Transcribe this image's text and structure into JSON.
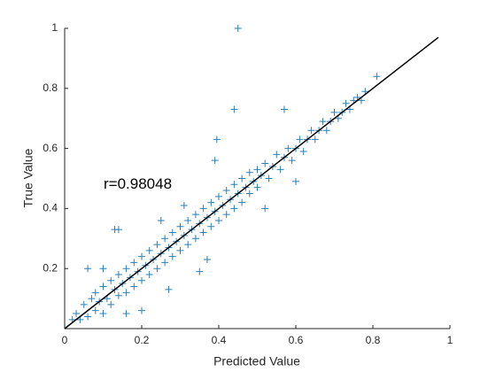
{
  "chart_data": {
    "type": "scatter",
    "xlabel": "Predicted Value",
    "ylabel": "True Value",
    "annotation": {
      "text": "r=0.98048",
      "x": 0.1,
      "y": 0.48
    },
    "xlim": [
      0,
      1
    ],
    "ylim": [
      0,
      1
    ],
    "xticks": [
      0,
      0.2,
      0.4,
      0.6,
      0.8,
      1
    ],
    "yticks": [
      0.2,
      0.4,
      0.6,
      0.8,
      1
    ],
    "series": [
      {
        "type": "scatter",
        "color": "#2a7fb8",
        "x": [
          0.02,
          0.03,
          0.04,
          0.05,
          0.06,
          0.07,
          0.08,
          0.08,
          0.09,
          0.1,
          0.1,
          0.11,
          0.12,
          0.12,
          0.13,
          0.14,
          0.14,
          0.15,
          0.16,
          0.16,
          0.17,
          0.18,
          0.18,
          0.19,
          0.2,
          0.2,
          0.21,
          0.22,
          0.22,
          0.23,
          0.24,
          0.24,
          0.25,
          0.26,
          0.26,
          0.27,
          0.28,
          0.28,
          0.29,
          0.3,
          0.3,
          0.31,
          0.32,
          0.32,
          0.33,
          0.34,
          0.34,
          0.35,
          0.36,
          0.36,
          0.37,
          0.38,
          0.38,
          0.39,
          0.4,
          0.4,
          0.41,
          0.42,
          0.42,
          0.43,
          0.44,
          0.44,
          0.45,
          0.46,
          0.46,
          0.47,
          0.48,
          0.48,
          0.49,
          0.5,
          0.5,
          0.51,
          0.52,
          0.53,
          0.54,
          0.55,
          0.56,
          0.57,
          0.58,
          0.59,
          0.6,
          0.61,
          0.62,
          0.63,
          0.64,
          0.65,
          0.66,
          0.67,
          0.68,
          0.69,
          0.7,
          0.71,
          0.72,
          0.73,
          0.74,
          0.75,
          0.76,
          0.77,
          0.78,
          0.45,
          0.44,
          0.395,
          0.39,
          0.13,
          0.14,
          0.06,
          0.1,
          0.57,
          0.81,
          0.35,
          0.37,
          0.2,
          0.16,
          0.6,
          0.52,
          0.27,
          0.31,
          0.25
        ],
        "values": [
          0.03,
          0.05,
          0.03,
          0.08,
          0.04,
          0.1,
          0.06,
          0.12,
          0.09,
          0.05,
          0.14,
          0.1,
          0.16,
          0.08,
          0.13,
          0.18,
          0.11,
          0.15,
          0.2,
          0.12,
          0.17,
          0.22,
          0.14,
          0.19,
          0.24,
          0.16,
          0.21,
          0.26,
          0.18,
          0.23,
          0.28,
          0.2,
          0.25,
          0.3,
          0.22,
          0.27,
          0.32,
          0.24,
          0.29,
          0.34,
          0.26,
          0.31,
          0.36,
          0.28,
          0.33,
          0.38,
          0.3,
          0.35,
          0.4,
          0.32,
          0.37,
          0.42,
          0.34,
          0.39,
          0.44,
          0.36,
          0.41,
          0.46,
          0.38,
          0.43,
          0.48,
          0.4,
          0.45,
          0.5,
          0.42,
          0.47,
          0.52,
          0.45,
          0.49,
          0.53,
          0.47,
          0.51,
          0.55,
          0.5,
          0.54,
          0.58,
          0.53,
          0.57,
          0.6,
          0.56,
          0.6,
          0.63,
          0.59,
          0.63,
          0.66,
          0.63,
          0.66,
          0.69,
          0.66,
          0.69,
          0.72,
          0.7,
          0.72,
          0.75,
          0.73,
          0.76,
          0.77,
          0.76,
          0.79,
          1.0,
          0.73,
          0.63,
          0.56,
          0.33,
          0.33,
          0.2,
          0.2,
          0.73,
          0.84,
          0.19,
          0.23,
          0.06,
          0.05,
          0.49,
          0.4,
          0.13,
          0.41,
          0.36
        ]
      },
      {
        "type": "line",
        "color": "#000000",
        "x": [
          0,
          0.97
        ],
        "values": [
          0,
          0.97
        ]
      }
    ]
  }
}
